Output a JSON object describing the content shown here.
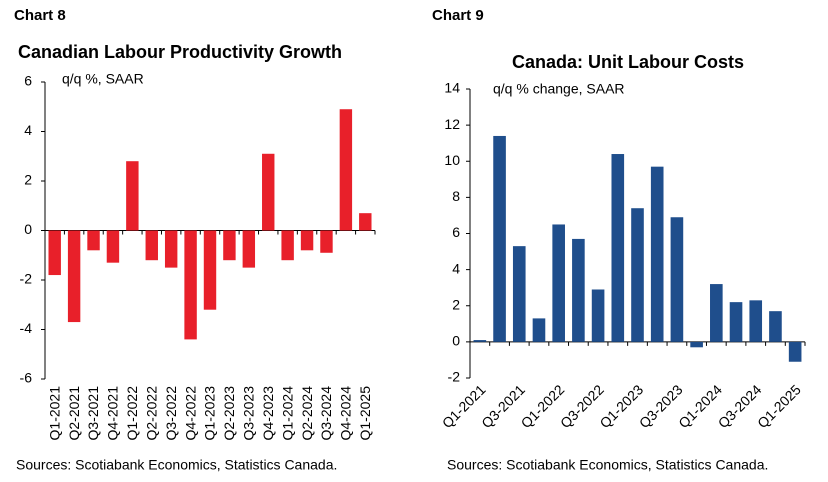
{
  "chart_data": [
    {
      "type": "bar",
      "chart_number": "Chart 8",
      "title": "Canadian Labour Productivity Growth",
      "subtitle": "q/q %, SAAR",
      "categories": [
        "Q1-2021",
        "Q2-2021",
        "Q3-2021",
        "Q4-2021",
        "Q1-2022",
        "Q2-2022",
        "Q3-2022",
        "Q4-2022",
        "Q1-2023",
        "Q2-2023",
        "Q3-2023",
        "Q4-2023",
        "Q1-2024",
        "Q2-2024",
        "Q3-2024",
        "Q4-2024",
        "Q1-2025"
      ],
      "values": [
        -1.8,
        -3.7,
        -0.8,
        -1.3,
        2.8,
        -1.2,
        -1.5,
        -4.4,
        -3.2,
        -1.2,
        -1.5,
        3.1,
        -1.2,
        -0.8,
        -0.9,
        4.9,
        0.7
      ],
      "color": "#e8202a",
      "ylim": [
        -6,
        6
      ],
      "yticks": [
        -6,
        -4,
        -2,
        0,
        2,
        4,
        6
      ],
      "source": "Sources: Scotiabank Economics, Statistics Canada."
    },
    {
      "type": "bar",
      "chart_number": "Chart 9",
      "title": "Canada: Unit Labour Costs",
      "subtitle": "q/q % change, SAAR",
      "categories": [
        "Q1-2021",
        null,
        "Q3-2021",
        null,
        "Q1-2022",
        null,
        "Q3-2022",
        null,
        "Q1-2023",
        null,
        "Q3-2023",
        null,
        "Q1-2024",
        null,
        "Q3-2024",
        null,
        "Q1-2025"
      ],
      "values": [
        0.1,
        11.4,
        5.3,
        1.3,
        6.5,
        5.7,
        2.9,
        10.4,
        7.4,
        9.7,
        6.9,
        -0.3,
        3.2,
        2.2,
        2.3,
        1.7,
        -1.1
      ],
      "color": "#1f4e8c",
      "ylim": [
        -2,
        14
      ],
      "yticks": [
        -2,
        0,
        2,
        4,
        6,
        8,
        10,
        12,
        14
      ],
      "source": "Sources: Scotiabank Economics, Statistics Canada."
    }
  ]
}
